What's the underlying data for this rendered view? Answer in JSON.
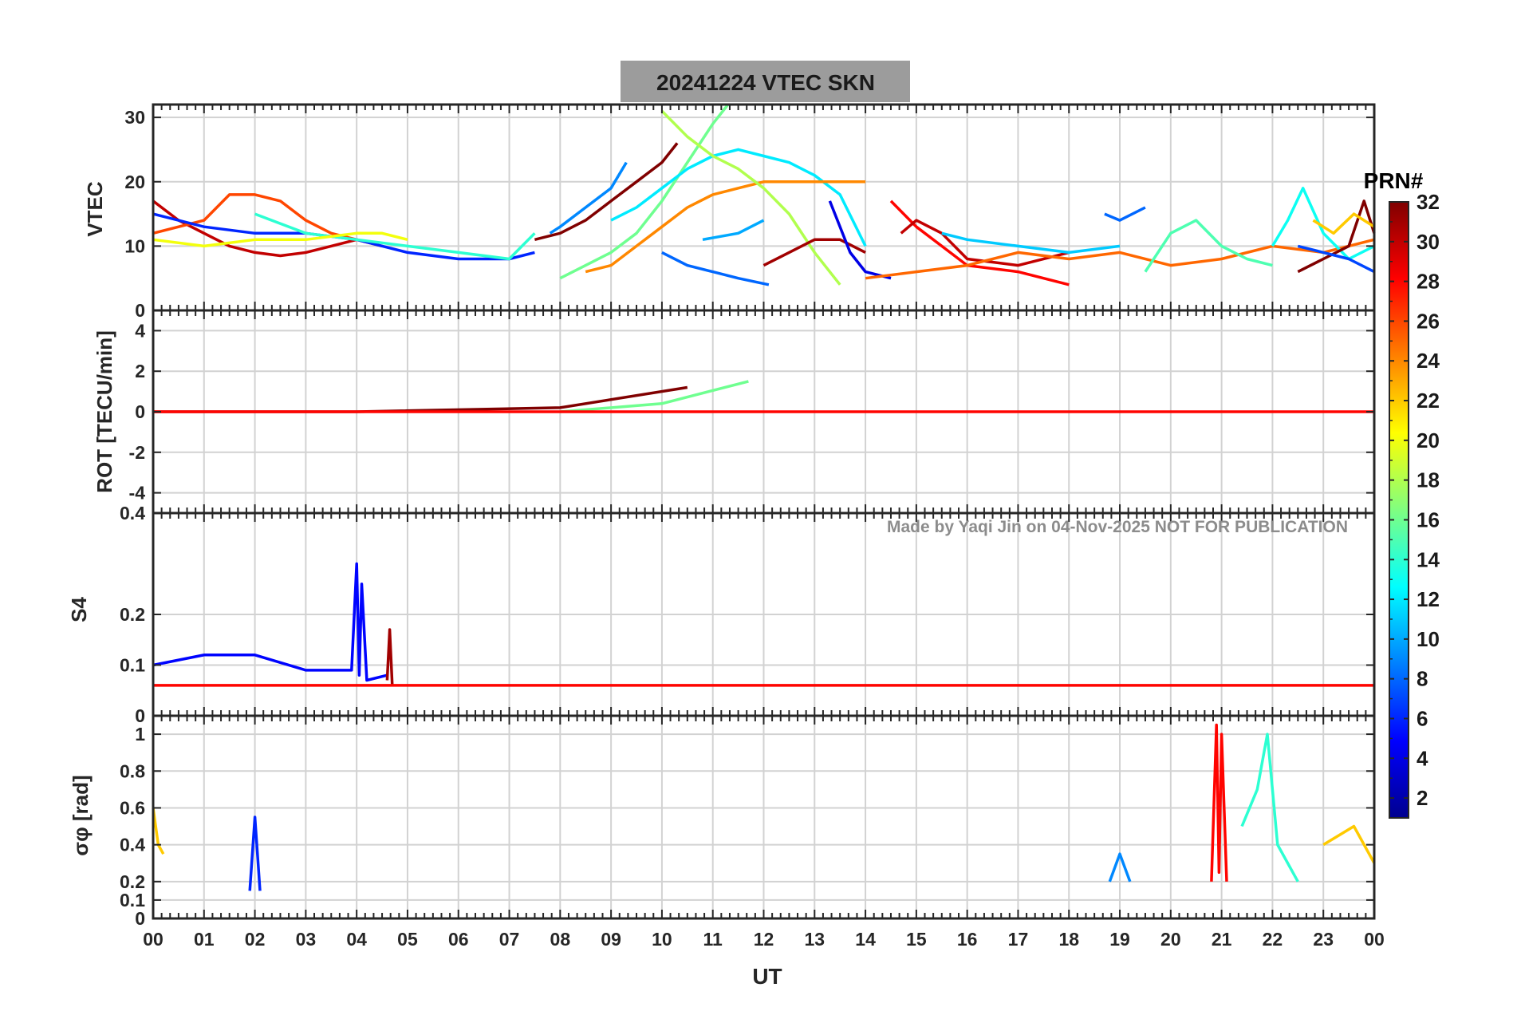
{
  "figure": {
    "title": "20241224    VTEC  SKN",
    "watermark": "Made by Yaqi Jin on 04-Nov-2025       NOT FOR PUBLICATION",
    "xlabel": "UT"
  },
  "colorbar": {
    "label": "PRN#",
    "ticks": [
      "32",
      "30",
      "28",
      "26",
      "24",
      "22",
      "20",
      "18",
      "16",
      "14",
      "12",
      "10",
      "8",
      "6",
      "4",
      "2"
    ],
    "range": [
      1,
      32
    ],
    "colormap": "jet",
    "colors": [
      "#00008f",
      "#0000ff",
      "#0080ff",
      "#00ffff",
      "#80ff80",
      "#ffff00",
      "#ff8000",
      "#ff0000",
      "#800000"
    ]
  },
  "chart_data": [
    {
      "type": "line",
      "name": "VTEC",
      "ylabel": "VTEC",
      "xlim": [
        0,
        24
      ],
      "ylim": [
        0,
        32
      ],
      "x_ticks": [
        "00",
        "01",
        "02",
        "03",
        "04",
        "05",
        "06",
        "07",
        "08",
        "09",
        "10",
        "11",
        "12",
        "13",
        "14",
        "15",
        "16",
        "17",
        "18",
        "19",
        "20",
        "21",
        "22",
        "23",
        "00"
      ],
      "y_ticks": [
        {
          "v": 0,
          "t": "0"
        },
        {
          "v": 10,
          "t": "10"
        },
        {
          "v": 20,
          "t": "20"
        },
        {
          "v": 30,
          "t": "30"
        }
      ],
      "grid": true,
      "series": [
        {
          "prn": 30,
          "x": [
            0,
            0.5,
            1,
            1.5,
            2,
            2.5,
            3,
            3.5,
            4
          ],
          "y": [
            17,
            14,
            12,
            10,
            9,
            8.5,
            9,
            10,
            11
          ]
        },
        {
          "prn": 26,
          "x": [
            0,
            1,
            1.5,
            2,
            2.5,
            3,
            3.5,
            4,
            4.5
          ],
          "y": [
            12,
            14,
            18,
            18,
            17,
            14,
            12,
            11,
            10
          ]
        },
        {
          "prn": 6,
          "x": [
            0,
            1,
            2,
            3,
            4,
            5,
            6,
            7,
            7.5
          ],
          "y": [
            15,
            13,
            12,
            12,
            11,
            9,
            8,
            8,
            9
          ]
        },
        {
          "prn": 14,
          "x": [
            2,
            3,
            4,
            5,
            6,
            7,
            7.5
          ],
          "y": [
            15,
            12,
            11,
            10,
            9,
            8,
            12
          ]
        },
        {
          "prn": 20,
          "x": [
            0,
            1,
            2,
            3,
            4,
            4.5,
            5
          ],
          "y": [
            11,
            10,
            11,
            11,
            12,
            12,
            11
          ]
        },
        {
          "prn": 32,
          "x": [
            7.5,
            8,
            8.5,
            9,
            9.5,
            10,
            10.3
          ],
          "y": [
            11,
            12,
            14,
            17,
            20,
            23,
            26
          ]
        },
        {
          "prn": 9,
          "x": [
            7.8,
            8,
            8.5,
            9,
            9.3
          ],
          "y": [
            12,
            13,
            16,
            19,
            23
          ]
        },
        {
          "prn": 16,
          "x": [
            8,
            8.5,
            9,
            9.5,
            10,
            10.5,
            11,
            11.3
          ],
          "y": [
            5,
            7,
            9,
            12,
            17,
            23,
            29,
            32
          ]
        },
        {
          "prn": 12,
          "x": [
            9,
            9.5,
            10,
            10.5,
            11,
            11.5,
            12,
            12.5,
            13,
            13.5,
            14
          ],
          "y": [
            14,
            16,
            19,
            22,
            24,
            25,
            24,
            23,
            21,
            18,
            10
          ]
        },
        {
          "prn": 24,
          "x": [
            8.5,
            9,
            9.5,
            10,
            10.5,
            11,
            11.5,
            12,
            12.5,
            13,
            13.5,
            14
          ],
          "y": [
            6,
            7,
            10,
            13,
            16,
            18,
            19,
            20,
            20,
            20,
            20,
            20
          ]
        },
        {
          "prn": 18,
          "x": [
            10,
            10.5,
            11,
            11.5,
            12,
            12.5,
            13,
            13.5
          ],
          "y": [
            31,
            27,
            24,
            22,
            19,
            15,
            9,
            4
          ]
        },
        {
          "prn": 10,
          "x": [
            10.8,
            11.5,
            12
          ],
          "y": [
            11,
            12,
            14
          ]
        },
        {
          "prn": 8,
          "x": [
            10,
            10.5,
            11,
            11.5,
            12.1
          ],
          "y": [
            9,
            7,
            6,
            5,
            4
          ]
        },
        {
          "prn": 31,
          "x": [
            12,
            12.5,
            13,
            13.5,
            14
          ],
          "y": [
            7,
            9,
            11,
            11,
            9
          ]
        },
        {
          "prn": 4,
          "x": [
            13.3,
            13.7,
            14,
            14.5
          ],
          "y": [
            17,
            9,
            6,
            5
          ]
        },
        {
          "prn": 28,
          "x": [
            14.5,
            15,
            15.5,
            16,
            17,
            18
          ],
          "y": [
            17,
            13,
            10,
            7,
            6,
            4
          ]
        },
        {
          "prn": 30,
          "x": [
            14.7,
            15,
            15.5,
            16,
            17,
            18
          ],
          "y": [
            12,
            14,
            12,
            8,
            7,
            9
          ]
        },
        {
          "prn": 11,
          "x": [
            15.5,
            16,
            17,
            18,
            19
          ],
          "y": [
            12,
            11,
            10,
            9,
            10
          ]
        },
        {
          "prn": 25,
          "x": [
            14,
            15,
            16,
            17,
            18,
            19,
            20,
            21,
            22,
            23,
            24
          ],
          "y": [
            5,
            6,
            7,
            9,
            8,
            9,
            7,
            8,
            10,
            9,
            11
          ]
        },
        {
          "prn": 8,
          "x": [
            18.7,
            19,
            19.5
          ],
          "y": [
            15,
            14,
            16
          ]
        },
        {
          "prn": 15,
          "x": [
            19.5,
            20,
            20.5,
            21,
            21.5,
            22
          ],
          "y": [
            6,
            12,
            14,
            10,
            8,
            7
          ]
        },
        {
          "prn": 13,
          "x": [
            22,
            22.3,
            22.6,
            23,
            23.5,
            24
          ],
          "y": [
            10,
            14,
            19,
            12,
            8,
            10
          ]
        },
        {
          "prn": 32,
          "x": [
            22.5,
            23,
            23.5,
            23.8,
            24
          ],
          "y": [
            6,
            8,
            10,
            17,
            12
          ]
        },
        {
          "prn": 22,
          "x": [
            22.8,
            23.2,
            23.6,
            24
          ],
          "y": [
            14,
            12,
            15,
            13
          ]
        },
        {
          "prn": 7,
          "x": [
            22.5,
            23,
            23.5,
            24
          ],
          "y": [
            10,
            9,
            8,
            6
          ]
        }
      ]
    },
    {
      "type": "line",
      "name": "ROT",
      "ylabel": "ROT [TECU/min]",
      "xlim": [
        0,
        24
      ],
      "ylim": [
        -5,
        5
      ],
      "x_ticks": [
        "00",
        "01",
        "02",
        "03",
        "04",
        "05",
        "06",
        "07",
        "08",
        "09",
        "10",
        "11",
        "12",
        "13",
        "14",
        "15",
        "16",
        "17",
        "18",
        "19",
        "20",
        "21",
        "22",
        "23",
        "00"
      ],
      "y_ticks": [
        {
          "v": -4,
          "t": "-4"
        },
        {
          "v": -2,
          "t": "-2"
        },
        {
          "v": 0,
          "t": "0"
        },
        {
          "v": 2,
          "t": "2"
        },
        {
          "v": 4,
          "t": "4"
        }
      ],
      "grid": true,
      "series": [
        {
          "prn": 32,
          "x": [
            0,
            4,
            8,
            10.5
          ],
          "y": [
            0,
            0,
            0.2,
            1.2
          ]
        },
        {
          "prn": 16,
          "x": [
            8,
            10,
            11.7
          ],
          "y": [
            0,
            0.4,
            1.5
          ]
        },
        {
          "prn": 28,
          "x": [
            0,
            24
          ],
          "y": [
            0,
            0
          ]
        }
      ]
    },
    {
      "type": "line",
      "name": "S4",
      "ylabel": "S4",
      "xlim": [
        0,
        24
      ],
      "ylim": [
        0,
        0.4
      ],
      "x_ticks": [
        "00",
        "01",
        "02",
        "03",
        "04",
        "05",
        "06",
        "07",
        "08",
        "09",
        "10",
        "11",
        "12",
        "13",
        "14",
        "15",
        "16",
        "17",
        "18",
        "19",
        "20",
        "21",
        "22",
        "23",
        "00"
      ],
      "y_ticks": [
        {
          "v": 0,
          "t": "0"
        },
        {
          "v": 0.1,
          "t": "0.1"
        },
        {
          "v": 0.2,
          "t": "0.2"
        },
        {
          "v": 0.4,
          "t": "0.4"
        }
      ],
      "grid": true,
      "series": [
        {
          "prn": 5,
          "x": [
            0,
            1,
            2,
            3,
            3.9,
            4,
            4.05,
            4.1,
            4.2,
            4.6
          ],
          "y": [
            0.1,
            0.12,
            0.12,
            0.09,
            0.09,
            0.3,
            0.08,
            0.26,
            0.07,
            0.08
          ]
        },
        {
          "prn": 31,
          "x": [
            4.6,
            4.65,
            4.7
          ],
          "y": [
            0.07,
            0.17,
            0.06
          ]
        },
        {
          "prn": 28,
          "x": [
            0,
            24
          ],
          "y": [
            0.06,
            0.06
          ]
        }
      ]
    },
    {
      "type": "line",
      "name": "sigma_phi",
      "ylabel": "σφ [rad]",
      "xlim": [
        0,
        24
      ],
      "ylim": [
        0,
        1.1
      ],
      "x_ticks": [
        "00",
        "01",
        "02",
        "03",
        "04",
        "05",
        "06",
        "07",
        "08",
        "09",
        "10",
        "11",
        "12",
        "13",
        "14",
        "15",
        "16",
        "17",
        "18",
        "19",
        "20",
        "21",
        "22",
        "23",
        "00"
      ],
      "y_ticks": [
        {
          "v": 0,
          "t": "0"
        },
        {
          "v": 0.1,
          "t": "0.1"
        },
        {
          "v": 0.2,
          "t": "0.2"
        },
        {
          "v": 0.4,
          "t": "0.4"
        },
        {
          "v": 0.6,
          "t": "0.6"
        },
        {
          "v": 0.8,
          "t": "0.8"
        },
        {
          "v": 1,
          "t": "1"
        }
      ],
      "grid": true,
      "series": [
        {
          "prn": 22,
          "x": [
            0,
            0.1,
            0.2
          ],
          "y": [
            0.6,
            0.4,
            0.35
          ]
        },
        {
          "prn": 28,
          "x": [
            20.8,
            20.9,
            20.95,
            21,
            21.1
          ],
          "y": [
            0.2,
            1.05,
            0.25,
            1.0,
            0.2
          ]
        },
        {
          "prn": 14,
          "x": [
            21.4,
            21.7,
            21.9,
            22.1,
            22.5
          ],
          "y": [
            0.5,
            0.7,
            1.0,
            0.4,
            0.2
          ]
        },
        {
          "prn": 22,
          "x": [
            23,
            23.3,
            23.6,
            24
          ],
          "y": [
            0.4,
            0.45,
            0.5,
            0.3
          ]
        },
        {
          "prn": 9,
          "x": [
            18.8,
            19,
            19.2
          ],
          "y": [
            0.2,
            0.35,
            0.2
          ]
        },
        {
          "prn": 6,
          "x": [
            1.9,
            2,
            2.1
          ],
          "y": [
            0.15,
            0.55,
            0.15
          ]
        }
      ]
    }
  ]
}
